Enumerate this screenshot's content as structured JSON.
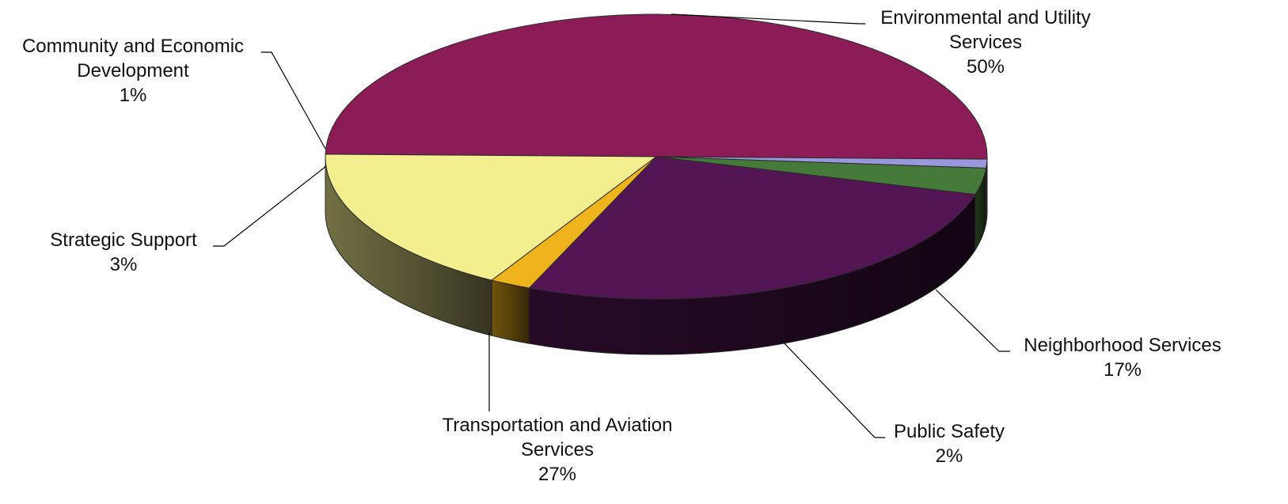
{
  "chart_data": {
    "type": "pie",
    "style": "3d",
    "title": "",
    "legend": "none",
    "slices": [
      {
        "label": "Environmental and Utility Services",
        "lines": [
          "Environmental and Utility",
          "Services"
        ],
        "pct_text": "50%",
        "value": 50,
        "color": "#8b1c57"
      },
      {
        "label": "Neighborhood Services",
        "lines": [
          "Neighborhood Services"
        ],
        "pct_text": "17%",
        "value": 17,
        "color": "#f3ef8f"
      },
      {
        "label": "Public Safety",
        "lines": [
          "Public Safety"
        ],
        "pct_text": "2%",
        "value": 2,
        "color": "#efb41c"
      },
      {
        "label": "Transportation and Aviation Services",
        "lines": [
          "Transportation and Aviation",
          "Services"
        ],
        "pct_text": "27%",
        "value": 27,
        "color": "#541555"
      },
      {
        "label": "Strategic Support",
        "lines": [
          "Strategic Support"
        ],
        "pct_text": "3%",
        "value": 3,
        "color": "#467a3a"
      },
      {
        "label": "Community and Economic Development",
        "lines": [
          "Community and Economic",
          "Development"
        ],
        "pct_text": "1%",
        "value": 1,
        "color": "#9a98dc"
      }
    ]
  }
}
